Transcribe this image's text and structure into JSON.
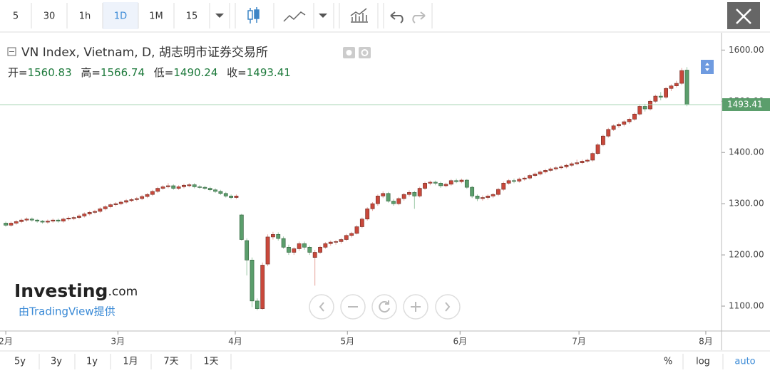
{
  "toolbar": {
    "intervals": [
      "5",
      "30",
      "1h",
      "1D",
      "1M",
      "15"
    ]
  },
  "chart_data": {
    "type": "candlestick",
    "title": "VN Index, Vietnam, D, 胡志明市证券交易所",
    "ohlc_labels": [
      "开=",
      "高=",
      "低=",
      "收="
    ],
    "up_color": "#c9483b",
    "down_color": "#5b9e6c",
    "xlim": [
      -1.1,
      136.6
    ],
    "xticks": [
      {
        "value": 0,
        "label": "2月"
      },
      {
        "value": 21.4,
        "label": "3月"
      },
      {
        "value": 43.8,
        "label": "4月"
      },
      {
        "value": 65.2,
        "label": "5月"
      },
      {
        "value": 86.7,
        "label": "6月"
      },
      {
        "value": 109.4,
        "label": "7月"
      },
      {
        "value": 133.6,
        "label": "8月"
      }
    ],
    "ylim": [
      1051.4,
      1633.8
    ],
    "yticks": [
      {
        "value": 1100,
        "label": "1100.00"
      },
      {
        "value": 1200,
        "label": "1200.00"
      },
      {
        "value": 1300,
        "label": "1300.00"
      },
      {
        "value": 1400,
        "label": "1400.00"
      },
      {
        "value": 1500,
        "label": "1500.00"
      },
      {
        "value": 1600,
        "label": "1600.00"
      }
    ],
    "candles": [
      {
        "open": 1262,
        "high": 1265,
        "low": 1255,
        "close": 1258
      },
      {
        "open": 1258,
        "high": 1265,
        "low": 1255,
        "close": 1262
      },
      {
        "open": 1262,
        "high": 1268,
        "low": 1259,
        "close": 1265
      },
      {
        "open": 1265,
        "high": 1271,
        "low": 1262,
        "close": 1268
      },
      {
        "open": 1268,
        "high": 1273,
        "low": 1265,
        "close": 1270
      },
      {
        "open": 1270,
        "high": 1273,
        "low": 1265,
        "close": 1268
      },
      {
        "open": 1268,
        "high": 1270,
        "low": 1263,
        "close": 1266
      },
      {
        "open": 1266,
        "high": 1268,
        "low": 1261,
        "close": 1264
      },
      {
        "open": 1264,
        "high": 1269,
        "low": 1261,
        "close": 1266
      },
      {
        "open": 1266,
        "high": 1271,
        "low": 1263,
        "close": 1268
      },
      {
        "open": 1268,
        "high": 1271,
        "low": 1263,
        "close": 1266
      },
      {
        "open": 1266,
        "high": 1273,
        "low": 1263,
        "close": 1270
      },
      {
        "open": 1270,
        "high": 1275,
        "low": 1267,
        "close": 1272
      },
      {
        "open": 1271,
        "high": 1276,
        "low": 1268,
        "close": 1273
      },
      {
        "open": 1273,
        "high": 1279,
        "low": 1270,
        "close": 1276
      },
      {
        "open": 1276,
        "high": 1283,
        "low": 1273,
        "close": 1280
      },
      {
        "open": 1280,
        "high": 1286,
        "low": 1277,
        "close": 1283
      },
      {
        "open": 1283,
        "high": 1288,
        "low": 1280,
        "close": 1285
      },
      {
        "open": 1285,
        "high": 1293,
        "low": 1282,
        "close": 1290
      },
      {
        "open": 1290,
        "high": 1297,
        "low": 1287,
        "close": 1294
      },
      {
        "open": 1294,
        "high": 1301,
        "low": 1291,
        "close": 1298
      },
      {
        "open": 1298,
        "high": 1303,
        "low": 1295,
        "close": 1300
      },
      {
        "open": 1300,
        "high": 1306,
        "low": 1297,
        "close": 1303
      },
      {
        "open": 1303,
        "high": 1309,
        "low": 1300,
        "close": 1306
      },
      {
        "open": 1306,
        "high": 1311,
        "low": 1303,
        "close": 1308
      },
      {
        "open": 1308,
        "high": 1313,
        "low": 1305,
        "close": 1310
      },
      {
        "open": 1310,
        "high": 1317,
        "low": 1307,
        "close": 1314
      },
      {
        "open": 1314,
        "high": 1321,
        "low": 1311,
        "close": 1318
      },
      {
        "open": 1318,
        "high": 1327,
        "low": 1315,
        "close": 1324
      },
      {
        "open": 1324,
        "high": 1333,
        "low": 1321,
        "close": 1330
      },
      {
        "open": 1330,
        "high": 1336,
        "low": 1327,
        "close": 1333
      },
      {
        "open": 1333,
        "high": 1340,
        "low": 1330,
        "close": 1335
      },
      {
        "open": 1335,
        "high": 1338,
        "low": 1327,
        "close": 1330
      },
      {
        "open": 1330,
        "high": 1336,
        "low": 1327,
        "close": 1333
      },
      {
        "open": 1333,
        "high": 1339,
        "low": 1330,
        "close": 1336
      },
      {
        "open": 1335,
        "high": 1340,
        "low": 1332,
        "close": 1337
      },
      {
        "open": 1337,
        "high": 1340,
        "low": 1330,
        "close": 1333
      },
      {
        "open": 1333,
        "high": 1336,
        "low": 1329,
        "close": 1332
      },
      {
        "open": 1332,
        "high": 1335,
        "low": 1327,
        "close": 1330
      },
      {
        "open": 1330,
        "high": 1333,
        "low": 1324,
        "close": 1327
      },
      {
        "open": 1327,
        "high": 1330,
        "low": 1321,
        "close": 1324
      },
      {
        "open": 1324,
        "high": 1327,
        "low": 1317,
        "close": 1320
      },
      {
        "open": 1320,
        "high": 1323,
        "low": 1312,
        "close": 1315
      },
      {
        "open": 1315,
        "high": 1318,
        "low": 1309,
        "close": 1312
      },
      {
        "open": 1312,
        "high": 1318,
        "low": 1309,
        "close": 1315
      },
      {
        "open": 1278,
        "high": 1280,
        "low": 1228,
        "close": 1230
      },
      {
        "open": 1228,
        "high": 1232,
        "low": 1160,
        "close": 1190
      },
      {
        "open": 1190,
        "high": 1195,
        "low": 1098,
        "close": 1110
      },
      {
        "open": 1110,
        "high": 1115,
        "low": 1092,
        "close": 1095
      },
      {
        "open": 1095,
        "high": 1185,
        "low": 1093,
        "close": 1180
      },
      {
        "open": 1182,
        "high": 1240,
        "low": 1178,
        "close": 1235
      },
      {
        "open": 1235,
        "high": 1245,
        "low": 1230,
        "close": 1240
      },
      {
        "open": 1240,
        "high": 1244,
        "low": 1228,
        "close": 1232
      },
      {
        "open": 1232,
        "high": 1236,
        "low": 1212,
        "close": 1215
      },
      {
        "open": 1215,
        "high": 1220,
        "low": 1200,
        "close": 1205
      },
      {
        "open": 1205,
        "high": 1215,
        "low": 1200,
        "close": 1212
      },
      {
        "open": 1212,
        "high": 1226,
        "low": 1208,
        "close": 1222
      },
      {
        "open": 1222,
        "high": 1226,
        "low": 1210,
        "close": 1215
      },
      {
        "open": 1215,
        "high": 1218,
        "low": 1200,
        "close": 1205
      },
      {
        "open": 1195,
        "high": 1210,
        "low": 1140,
        "close": 1205
      },
      {
        "open": 1205,
        "high": 1218,
        "low": 1202,
        "close": 1215
      },
      {
        "open": 1215,
        "high": 1225,
        "low": 1212,
        "close": 1222
      },
      {
        "open": 1222,
        "high": 1228,
        "low": 1218,
        "close": 1225
      },
      {
        "open": 1225,
        "high": 1229,
        "low": 1220,
        "close": 1226
      },
      {
        "open": 1226,
        "high": 1233,
        "low": 1222,
        "close": 1230
      },
      {
        "open": 1230,
        "high": 1241,
        "low": 1227,
        "close": 1238
      },
      {
        "open": 1238,
        "high": 1245,
        "low": 1234,
        "close": 1242
      },
      {
        "open": 1242,
        "high": 1258,
        "low": 1240,
        "close": 1255
      },
      {
        "open": 1255,
        "high": 1273,
        "low": 1252,
        "close": 1270
      },
      {
        "open": 1270,
        "high": 1293,
        "low": 1267,
        "close": 1290
      },
      {
        "open": 1290,
        "high": 1303,
        "low": 1286,
        "close": 1300
      },
      {
        "open": 1300,
        "high": 1318,
        "low": 1296,
        "close": 1315
      },
      {
        "open": 1315,
        "high": 1324,
        "low": 1311,
        "close": 1320
      },
      {
        "open": 1320,
        "high": 1323,
        "low": 1302,
        "close": 1305
      },
      {
        "open": 1305,
        "high": 1309,
        "low": 1296,
        "close": 1300
      },
      {
        "open": 1300,
        "high": 1313,
        "low": 1297,
        "close": 1310
      },
      {
        "open": 1310,
        "high": 1321,
        "low": 1306,
        "close": 1318
      },
      {
        "open": 1318,
        "high": 1326,
        "low": 1314,
        "close": 1322
      },
      {
        "open": 1322,
        "high": 1325,
        "low": 1290,
        "close": 1315
      },
      {
        "open": 1315,
        "high": 1333,
        "low": 1312,
        "close": 1330
      },
      {
        "open": 1330,
        "high": 1343,
        "low": 1327,
        "close": 1340
      },
      {
        "open": 1340,
        "high": 1345,
        "low": 1336,
        "close": 1342
      },
      {
        "open": 1342,
        "high": 1345,
        "low": 1336,
        "close": 1340
      },
      {
        "open": 1340,
        "high": 1343,
        "low": 1331,
        "close": 1335
      },
      {
        "open": 1335,
        "high": 1341,
        "low": 1332,
        "close": 1338
      },
      {
        "open": 1338,
        "high": 1348,
        "low": 1335,
        "close": 1345
      },
      {
        "open": 1345,
        "high": 1349,
        "low": 1340,
        "close": 1343
      },
      {
        "open": 1343,
        "high": 1349,
        "low": 1340,
        "close": 1346
      },
      {
        "open": 1346,
        "high": 1348,
        "low": 1329,
        "close": 1332
      },
      {
        "open": 1332,
        "high": 1335,
        "low": 1311,
        "close": 1315
      },
      {
        "open": 1315,
        "high": 1318,
        "low": 1305,
        "close": 1310
      },
      {
        "open": 1310,
        "high": 1316,
        "low": 1306,
        "close": 1312
      },
      {
        "open": 1312,
        "high": 1318,
        "low": 1308,
        "close": 1315
      },
      {
        "open": 1315,
        "high": 1321,
        "low": 1311,
        "close": 1318
      },
      {
        "open": 1318,
        "high": 1331,
        "low": 1315,
        "close": 1328
      },
      {
        "open": 1328,
        "high": 1343,
        "low": 1325,
        "close": 1340
      },
      {
        "open": 1340,
        "high": 1348,
        "low": 1337,
        "close": 1345
      },
      {
        "open": 1345,
        "high": 1349,
        "low": 1340,
        "close": 1344
      },
      {
        "open": 1344,
        "high": 1351,
        "low": 1341,
        "close": 1348
      },
      {
        "open": 1348,
        "high": 1353,
        "low": 1345,
        "close": 1350
      },
      {
        "open": 1350,
        "high": 1358,
        "low": 1347,
        "close": 1355
      },
      {
        "open": 1355,
        "high": 1361,
        "low": 1352,
        "close": 1358
      },
      {
        "open": 1358,
        "high": 1365,
        "low": 1355,
        "close": 1362
      },
      {
        "open": 1362,
        "high": 1368,
        "low": 1359,
        "close": 1365
      },
      {
        "open": 1365,
        "high": 1371,
        "low": 1362,
        "close": 1368
      },
      {
        "open": 1368,
        "high": 1373,
        "low": 1365,
        "close": 1370
      },
      {
        "open": 1370,
        "high": 1375,
        "low": 1367,
        "close": 1372
      },
      {
        "open": 1372,
        "high": 1378,
        "low": 1369,
        "close": 1375
      },
      {
        "open": 1375,
        "high": 1381,
        "low": 1372,
        "close": 1378
      },
      {
        "open": 1378,
        "high": 1386,
        "low": 1375,
        "close": 1380
      },
      {
        "open": 1380,
        "high": 1386,
        "low": 1377,
        "close": 1383
      },
      {
        "open": 1383,
        "high": 1388,
        "low": 1380,
        "close": 1385
      },
      {
        "open": 1385,
        "high": 1401,
        "low": 1382,
        "close": 1398
      },
      {
        "open": 1398,
        "high": 1418,
        "low": 1395,
        "close": 1415
      },
      {
        "open": 1415,
        "high": 1435,
        "low": 1412,
        "close": 1432
      },
      {
        "open": 1432,
        "high": 1448,
        "low": 1429,
        "close": 1445
      },
      {
        "open": 1445,
        "high": 1455,
        "low": 1442,
        "close": 1452
      },
      {
        "open": 1452,
        "high": 1458,
        "low": 1448,
        "close": 1455
      },
      {
        "open": 1455,
        "high": 1463,
        "low": 1451,
        "close": 1460
      },
      {
        "open": 1460,
        "high": 1468,
        "low": 1456,
        "close": 1465
      },
      {
        "open": 1465,
        "high": 1478,
        "low": 1462,
        "close": 1475
      },
      {
        "open": 1475,
        "high": 1493,
        "low": 1472,
        "close": 1490
      },
      {
        "open": 1490,
        "high": 1495,
        "low": 1480,
        "close": 1485
      },
      {
        "open": 1485,
        "high": 1503,
        "low": 1482,
        "close": 1500
      },
      {
        "open": 1500,
        "high": 1513,
        "low": 1497,
        "close": 1510
      },
      {
        "open": 1510,
        "high": 1518,
        "low": 1502,
        "close": 1508
      },
      {
        "open": 1508,
        "high": 1528,
        "low": 1505,
        "close": 1525
      },
      {
        "open": 1525,
        "high": 1533,
        "low": 1520,
        "close": 1530
      },
      {
        "open": 1530,
        "high": 1540,
        "low": 1527,
        "close": 1535
      },
      {
        "open": 1535,
        "high": 1565,
        "low": 1532,
        "close": 1560
      },
      {
        "open": 1560.83,
        "high": 1566.74,
        "low": 1490.24,
        "close": 1493.41
      }
    ]
  },
  "watermark": {
    "brand": "Investing",
    "brand_suffix": ".com",
    "provider": "由TradingView提供"
  },
  "bottom_bar": {
    "ranges": [
      "5y",
      "3y",
      "1y",
      "1月",
      "7天",
      "1天"
    ],
    "options": [
      "%",
      "log",
      "auto"
    ]
  }
}
